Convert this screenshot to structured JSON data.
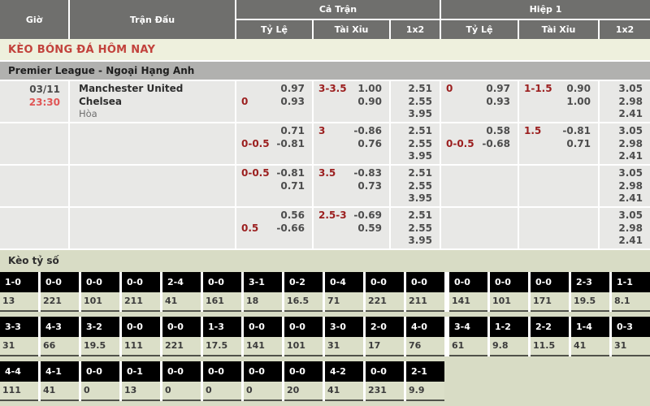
{
  "header": {
    "gio": "Giờ",
    "tran_dau": "Trận Đấu",
    "ca_tran": "Cả Trận",
    "hiep_1": "Hiệp 1",
    "ty_le": "Tỷ Lệ",
    "tai_xiu": "Tài Xỉu",
    "x12": "1x2"
  },
  "page_title": "KÈO BÓNG ĐÁ HÔM NAY",
  "league": "Premier League - Ngoại Hạng Anh",
  "colors": {
    "title_red": "#c2423c",
    "handicap_red": "#9b1e1e",
    "time_red": "#e05656",
    "header_gray": "#6f6f6d",
    "row_gray": "#e8e8e6",
    "section_sage": "#d8dcc5",
    "score_cell_black": "#000000"
  },
  "odds_rows": [
    {
      "date": "03/11",
      "time": "23:30",
      "home": "Manchester United",
      "away": "Chelsea",
      "draw": "Hòa",
      "ft_hdp": {
        "hc1": "",
        "od1": "0.97",
        "hc2": "0",
        "od2": "0.93"
      },
      "ft_ou": {
        "hc1": "3-3.5",
        "od1": "1.00",
        "hc2": "",
        "od2": "0.90"
      },
      "ft_1x2": {
        "o1": "2.51",
        "o2": "2.55",
        "o3": "3.95"
      },
      "fh_hdp": {
        "hc1": "0",
        "od1": "0.97",
        "hc2": "",
        "od2": "0.93"
      },
      "fh_ou": {
        "hc1": "1-1.5",
        "od1": "0.90",
        "hc2": "",
        "od2": "1.00"
      },
      "fh_1x2": {
        "o1": "3.05",
        "o2": "2.98",
        "o3": "2.41"
      }
    },
    {
      "ft_hdp": {
        "hc1": "",
        "od1": "0.71",
        "hc2": "0-0.5",
        "od2": "-0.81"
      },
      "ft_ou": {
        "hc1": "3",
        "od1": "-0.86",
        "hc2": "",
        "od2": "0.76"
      },
      "ft_1x2": {
        "o1": "2.51",
        "o2": "2.55",
        "o3": "3.95"
      },
      "fh_hdp": {
        "hc1": "",
        "od1": "0.58",
        "hc2": "0-0.5",
        "od2": "-0.68"
      },
      "fh_ou": {
        "hc1": "1.5",
        "od1": "-0.81",
        "hc2": "",
        "od2": "0.71"
      },
      "fh_1x2": {
        "o1": "3.05",
        "o2": "2.98",
        "o3": "2.41"
      }
    },
    {
      "ft_hdp": {
        "hc1": "0-0.5",
        "od1": "-0.81",
        "hc2": "",
        "od2": "0.71"
      },
      "ft_ou": {
        "hc1": "3.5",
        "od1": "-0.83",
        "hc2": "",
        "od2": "0.73"
      },
      "ft_1x2": {
        "o1": "2.51",
        "o2": "2.55",
        "o3": "3.95"
      },
      "fh_hdp": {
        "hc1": "",
        "od1": "",
        "hc2": "",
        "od2": ""
      },
      "fh_ou": {
        "hc1": "",
        "od1": "",
        "hc2": "",
        "od2": ""
      },
      "fh_1x2": {
        "o1": "3.05",
        "o2": "2.98",
        "o3": "2.41"
      }
    },
    {
      "ft_hdp": {
        "hc1": "",
        "od1": "0.56",
        "hc2": "0.5",
        "od2": "-0.66"
      },
      "ft_ou": {
        "hc1": "2.5-3",
        "od1": "-0.69",
        "hc2": "",
        "od2": "0.59"
      },
      "ft_1x2": {
        "o1": "2.51",
        "o2": "2.55",
        "o3": "3.95"
      },
      "fh_hdp": {
        "hc1": "",
        "od1": "",
        "hc2": "",
        "od2": ""
      },
      "fh_ou": {
        "hc1": "",
        "od1": "",
        "hc2": "",
        "od2": ""
      },
      "fh_1x2": {
        "o1": "3.05",
        "o2": "2.98",
        "o3": "2.41"
      }
    }
  ],
  "score_grid": {
    "title": "Kèo tỷ số",
    "r1_left": [
      {
        "s": "1-0",
        "v": "13"
      },
      {
        "s": "0-0",
        "v": "221"
      },
      {
        "s": "0-0",
        "v": "101"
      },
      {
        "s": "0-0",
        "v": "211"
      },
      {
        "s": "2-4",
        "v": "41"
      },
      {
        "s": "0-0",
        "v": "161"
      },
      {
        "s": "3-1",
        "v": "18"
      },
      {
        "s": "0-2",
        "v": "16.5"
      },
      {
        "s": "0-4",
        "v": "71"
      },
      {
        "s": "0-0",
        "v": "221"
      },
      {
        "s": "0-0",
        "v": "211"
      }
    ],
    "r1_right": [
      {
        "s": "0-0",
        "v": "141"
      },
      {
        "s": "0-0",
        "v": "101"
      },
      {
        "s": "0-0",
        "v": "171"
      },
      {
        "s": "2-3",
        "v": "19.5"
      },
      {
        "s": "1-1",
        "v": "8.1"
      }
    ],
    "r2_left": [
      {
        "s": "3-3",
        "v": "31"
      },
      {
        "s": "4-3",
        "v": "66"
      },
      {
        "s": "3-2",
        "v": "19.5"
      },
      {
        "s": "0-0",
        "v": "111"
      },
      {
        "s": "0-0",
        "v": "221"
      },
      {
        "s": "1-3",
        "v": "17.5"
      },
      {
        "s": "0-0",
        "v": "141"
      },
      {
        "s": "0-0",
        "v": "101"
      },
      {
        "s": "3-0",
        "v": "31"
      },
      {
        "s": "2-0",
        "v": "17"
      },
      {
        "s": "4-0",
        "v": "76"
      }
    ],
    "r2_right": [
      {
        "s": "3-4",
        "v": "61"
      },
      {
        "s": "1-2",
        "v": "9.8"
      },
      {
        "s": "2-2",
        "v": "11.5"
      },
      {
        "s": "1-4",
        "v": "41"
      },
      {
        "s": "0-3",
        "v": "31"
      }
    ],
    "r3_left": [
      {
        "s": "4-4",
        "v": "111"
      },
      {
        "s": "4-1",
        "v": "41"
      },
      {
        "s": "0-0",
        "v": "0"
      },
      {
        "s": "0-1",
        "v": "13"
      },
      {
        "s": "0-0",
        "v": "0"
      },
      {
        "s": "0-0",
        "v": "0"
      },
      {
        "s": "0-0",
        "v": "0"
      },
      {
        "s": "0-0",
        "v": "20"
      },
      {
        "s": "4-2",
        "v": "41"
      },
      {
        "s": "0-0",
        "v": "231"
      },
      {
        "s": "2-1",
        "v": "9.9"
      }
    ],
    "r3_right": []
  }
}
